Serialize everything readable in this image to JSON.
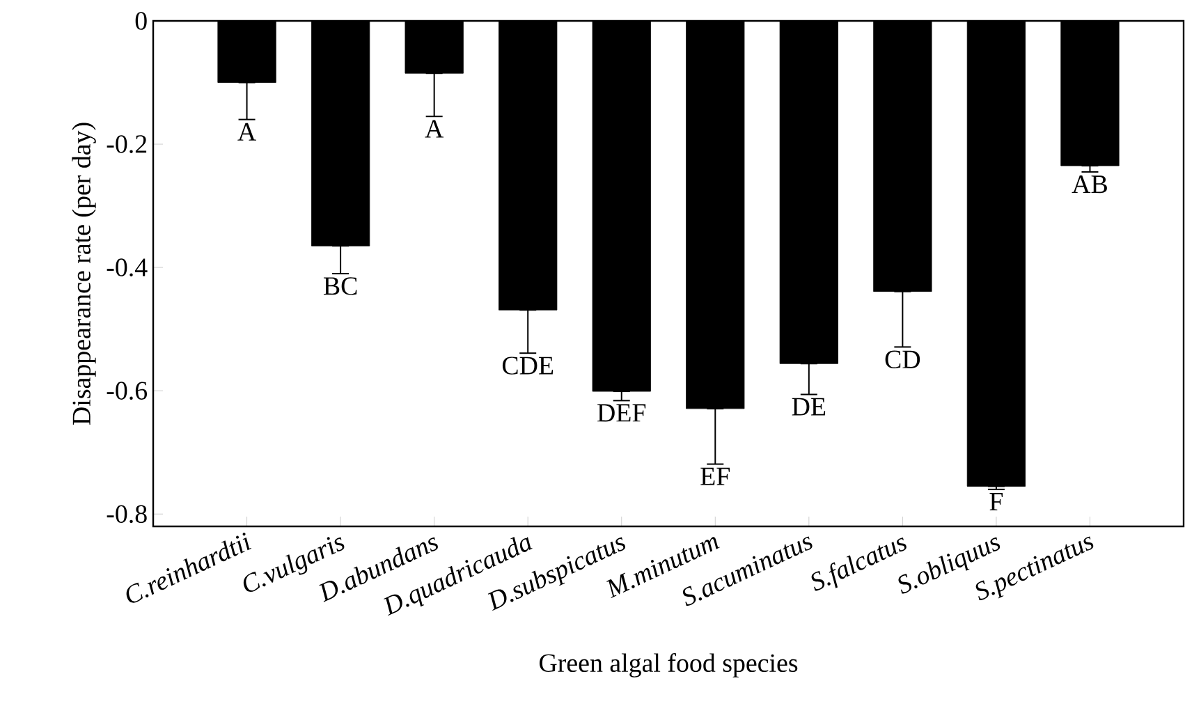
{
  "chart_data": {
    "type": "bar",
    "xlabel": "Green algal food species",
    "ylabel": "Disappearance rate (per day)",
    "categories": [
      "C.reinhardtii",
      "C.vulgaris",
      "D.abundans",
      "D.quadricauda",
      "D.subspicatus",
      "M.minutum",
      "S.acuminatus",
      "S.falcatus",
      "S.obliquus",
      "S.pectinatus"
    ],
    "values": [
      -0.1,
      -0.365,
      -0.085,
      -0.469,
      -0.601,
      -0.629,
      -0.556,
      -0.439,
      -0.755,
      -0.235
    ],
    "errors": [
      [
        -0.16,
        -0.1
      ],
      [
        -0.41,
        -0.365
      ],
      [
        -0.155,
        -0.085
      ],
      [
        -0.539,
        -0.469
      ],
      [
        -0.616,
        -0.601
      ],
      [
        -0.719,
        -0.629
      ],
      [
        -0.606,
        -0.556
      ],
      [
        -0.529,
        -0.439
      ],
      [
        -0.76,
        -0.755
      ],
      [
        -0.245,
        -0.235
      ]
    ],
    "color": "#000000",
    "ylim": [
      -0.82,
      0
    ],
    "yticks": [
      0,
      -0.2,
      -0.4,
      -0.6,
      -0.8
    ],
    "annotations": [
      "A",
      "BC",
      "A",
      "CDE",
      "DEF",
      "EF",
      "DE",
      "CD",
      "F",
      "AB"
    ]
  }
}
